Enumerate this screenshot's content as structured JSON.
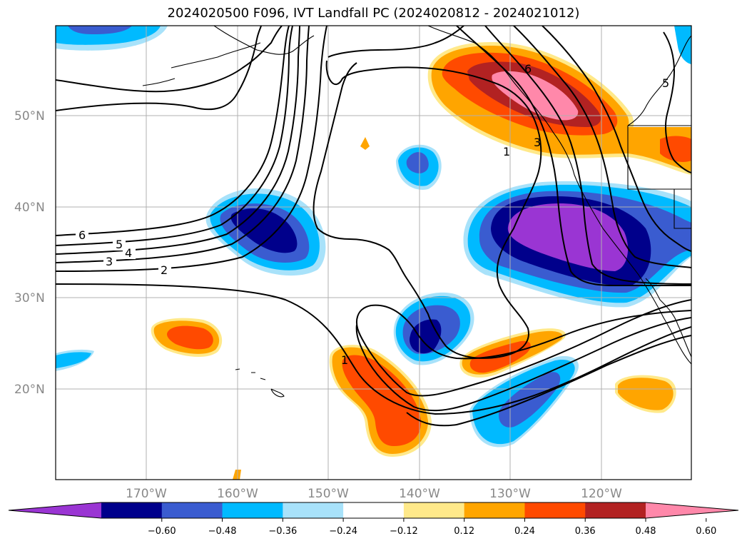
{
  "title": "2024020500 F096, IVT Landfall PC (2024020812 - 2024021012)",
  "lat_labels": [
    "50°N",
    "40°N",
    "30°N",
    "20°N"
  ],
  "lon_labels": [
    "170°W",
    "160°W",
    "150°W",
    "140°W",
    "130°W",
    "120°W"
  ],
  "colorbar": {
    "ticks": [
      "−0.60",
      "−0.48",
      "−0.36",
      "−0.24",
      "−0.12",
      "0.12",
      "0.24",
      "0.36",
      "0.48",
      "0.60"
    ],
    "colors": [
      "#9a35d3",
      "#00008b",
      "#3a5cd0",
      "#00baff",
      "#a8e2fa",
      "#ffffff",
      "#ffe98a",
      "#ffa500",
      "#ff4a00",
      "#b22222",
      "#ff88aa"
    ]
  },
  "contour_labels": [
    "6",
    "5",
    "4",
    "3",
    "2",
    "1",
    "1",
    "3",
    "6",
    "5",
    "1"
  ]
}
